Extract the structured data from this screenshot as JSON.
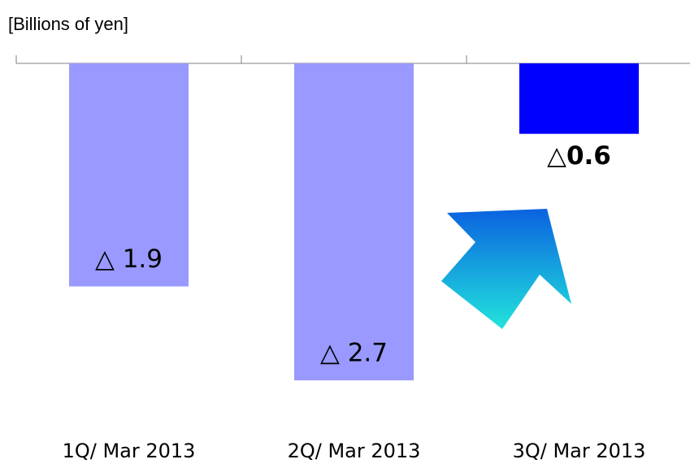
{
  "chart_data": {
    "type": "bar",
    "title": "[Billions of yen]",
    "categories": [
      "1Q/ Mar 2013",
      "2Q/ Mar 2013",
      "3Q/ Mar 2013"
    ],
    "values": [
      -1.9,
      -2.7,
      -0.6
    ],
    "value_labels": [
      "△ 1.9",
      "△ 2.7",
      "△0.6"
    ],
    "colors": [
      "#9999ff",
      "#9999ff",
      "#0000ff"
    ],
    "ylim": [
      -3,
      0
    ]
  }
}
